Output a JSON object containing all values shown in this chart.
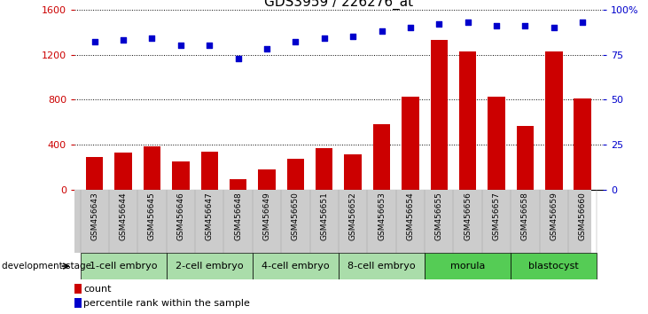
{
  "title": "GDS3959 / 226276_at",
  "categories": [
    "GSM456643",
    "GSM456644",
    "GSM456645",
    "GSM456646",
    "GSM456647",
    "GSM456648",
    "GSM456649",
    "GSM456650",
    "GSM456651",
    "GSM456652",
    "GSM456653",
    "GSM456654",
    "GSM456655",
    "GSM456656",
    "GSM456657",
    "GSM456658",
    "GSM456659",
    "GSM456660"
  ],
  "counts": [
    290,
    330,
    390,
    255,
    340,
    95,
    185,
    275,
    370,
    315,
    580,
    830,
    1330,
    1230,
    830,
    570,
    1230,
    810
  ],
  "percentile": [
    82,
    83,
    84,
    80,
    80,
    73,
    78,
    82,
    84,
    85,
    88,
    90,
    92,
    93,
    91,
    91,
    90,
    93
  ],
  "stages": [
    {
      "label": "1-cell embryo",
      "start": 0,
      "end": 3
    },
    {
      "label": "2-cell embryo",
      "start": 3,
      "end": 6
    },
    {
      "label": "4-cell embryo",
      "start": 6,
      "end": 9
    },
    {
      "label": "8-cell embryo",
      "start": 9,
      "end": 12
    },
    {
      "label": "morula",
      "start": 12,
      "end": 15
    },
    {
      "label": "blastocyst",
      "start": 15,
      "end": 18
    }
  ],
  "stage_colors": {
    "1-cell embryo": "#aaddaa",
    "2-cell embryo": "#aaddaa",
    "4-cell embryo": "#aaddaa",
    "8-cell embryo": "#aaddaa",
    "morula": "#55cc55",
    "blastocyst": "#55cc55"
  },
  "bar_color": "#cc0000",
  "dot_color": "#0000cc",
  "left_ylim": [
    0,
    1600
  ],
  "right_ylim": [
    0,
    100
  ],
  "left_yticks": [
    0,
    400,
    800,
    1200,
    1600
  ],
  "right_yticks": [
    0,
    25,
    50,
    75,
    100
  ],
  "right_yticklabels": [
    "0",
    "25",
    "50",
    "75",
    "100%"
  ],
  "xlabel_stage": "development stage",
  "legend_count_label": "count",
  "legend_pct_label": "percentile rank within the sample",
  "title_fontsize": 11,
  "tick_label_fontsize": 6.5,
  "stage_label_fontsize": 8,
  "sample_bg_color": "#cccccc"
}
